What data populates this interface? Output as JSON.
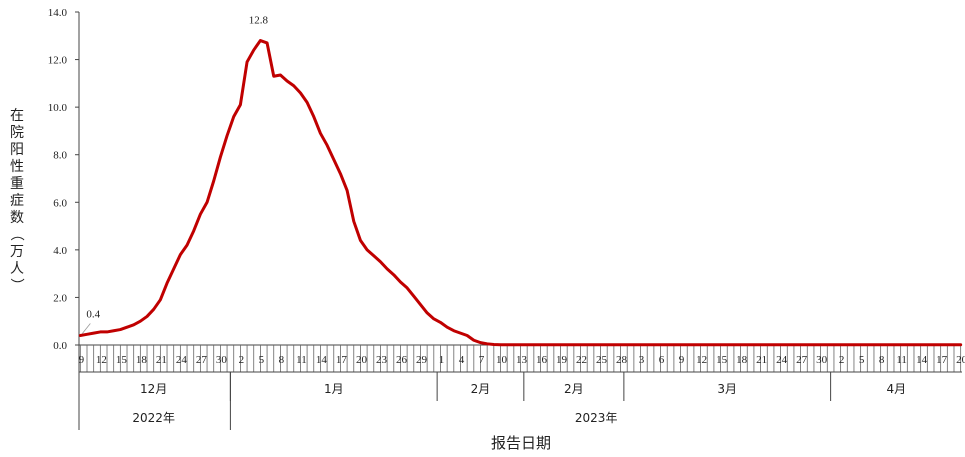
{
  "chart_data": {
    "type": "line",
    "title": "",
    "ylabel": "在院阳性重症数（万人）",
    "xlabel": "报告日期",
    "ylim": [
      0,
      14
    ],
    "yticks": [
      "0.0",
      "2.0",
      "4.0",
      "6.0",
      "8.0",
      "10.0",
      "12.0",
      "14.0"
    ],
    "line_color": "#c00000",
    "grid": false,
    "annotations": [
      {
        "text": "0.4",
        "x": "2022-12-09",
        "y": 0.4
      },
      {
        "text": "12.8",
        "x": "2023-01-05",
        "y": 12.8
      }
    ],
    "day_labels": [
      "9",
      "12",
      "15",
      "18",
      "21",
      "24",
      "27",
      "30",
      "2",
      "5",
      "8",
      "11",
      "14",
      "17",
      "20",
      "23",
      "26",
      "29",
      "1",
      "4",
      "7",
      "10",
      "13",
      "16",
      "19",
      "22",
      "25",
      "28",
      "3",
      "6",
      "9",
      "12",
      "15",
      "18",
      "21",
      "24",
      "27",
      "30",
      "2",
      "5",
      "8",
      "11",
      "14",
      "17",
      "20"
    ],
    "month_groups": [
      {
        "label": "12月",
        "start": "2022-12-09",
        "end": "2022-12-31"
      },
      {
        "label": "1月",
        "start": "2023-01-01",
        "end": "2023-01-31"
      },
      {
        "label": "2月",
        "start": "2023-02-01",
        "end": "2023-02-13"
      },
      {
        "label": "2月",
        "start": "2023-02-14",
        "end": "2023-02-28"
      },
      {
        "label": "3月",
        "start": "2023-03-01",
        "end": "2023-03-31"
      },
      {
        "label": "4月",
        "start": "2023-04-01",
        "end": "2023-04-20"
      }
    ],
    "year_groups": [
      {
        "label": "2022年",
        "start": "2022-12-09",
        "end": "2022-12-31"
      },
      {
        "label": "2023年",
        "start": "2023-01-01",
        "end": "2023-04-20"
      }
    ],
    "x": [
      "2022-12-09",
      "2022-12-10",
      "2022-12-11",
      "2022-12-12",
      "2022-12-13",
      "2022-12-14",
      "2022-12-15",
      "2022-12-16",
      "2022-12-17",
      "2022-12-18",
      "2022-12-19",
      "2022-12-20",
      "2022-12-21",
      "2022-12-22",
      "2022-12-23",
      "2022-12-24",
      "2022-12-25",
      "2022-12-26",
      "2022-12-27",
      "2022-12-28",
      "2022-12-29",
      "2022-12-30",
      "2022-12-31",
      "2023-01-01",
      "2023-01-02",
      "2023-01-03",
      "2023-01-04",
      "2023-01-05",
      "2023-01-06",
      "2023-01-07",
      "2023-01-08",
      "2023-01-09",
      "2023-01-10",
      "2023-01-11",
      "2023-01-12",
      "2023-01-13",
      "2023-01-14",
      "2023-01-15",
      "2023-01-16",
      "2023-01-17",
      "2023-01-18",
      "2023-01-19",
      "2023-01-20",
      "2023-01-21",
      "2023-01-22",
      "2023-01-23",
      "2023-01-24",
      "2023-01-25",
      "2023-01-26",
      "2023-01-27",
      "2023-01-28",
      "2023-01-29",
      "2023-01-30",
      "2023-01-31",
      "2023-02-01",
      "2023-02-02",
      "2023-02-03",
      "2023-02-04",
      "2023-02-05",
      "2023-02-06",
      "2023-02-07",
      "2023-02-08",
      "2023-02-09",
      "2023-02-10",
      "2023-02-11",
      "2023-02-12",
      "2023-02-13",
      "2023-02-14",
      "2023-02-15",
      "2023-02-16",
      "2023-02-17",
      "2023-02-18",
      "2023-02-19",
      "2023-02-20",
      "2023-02-21",
      "2023-02-22",
      "2023-02-23",
      "2023-02-24",
      "2023-02-25",
      "2023-02-26",
      "2023-02-27",
      "2023-02-28",
      "2023-03-01",
      "2023-03-02",
      "2023-03-03",
      "2023-03-04",
      "2023-03-05",
      "2023-03-06",
      "2023-03-07",
      "2023-03-08",
      "2023-03-09",
      "2023-03-10",
      "2023-03-11",
      "2023-03-12",
      "2023-03-13",
      "2023-03-14",
      "2023-03-15",
      "2023-03-16",
      "2023-03-17",
      "2023-03-18",
      "2023-03-19",
      "2023-03-20",
      "2023-03-21",
      "2023-03-22",
      "2023-03-23",
      "2023-03-24",
      "2023-03-25",
      "2023-03-26",
      "2023-03-27",
      "2023-03-28",
      "2023-03-29",
      "2023-03-30",
      "2023-03-31",
      "2023-04-01",
      "2023-04-02",
      "2023-04-03",
      "2023-04-04",
      "2023-04-05",
      "2023-04-06",
      "2023-04-07",
      "2023-04-08",
      "2023-04-09",
      "2023-04-10",
      "2023-04-11",
      "2023-04-12",
      "2023-04-13",
      "2023-04-14",
      "2023-04-15",
      "2023-04-16",
      "2023-04-17",
      "2023-04-18",
      "2023-04-19",
      "2023-04-20"
    ],
    "series": [
      {
        "values": [
          0.4,
          0.45,
          0.5,
          0.55,
          0.55,
          0.6,
          0.65,
          0.75,
          0.85,
          1.0,
          1.2,
          1.5,
          1.9,
          2.6,
          3.2,
          3.8,
          4.2,
          4.8,
          5.5,
          6.0,
          6.9,
          7.9,
          8.8,
          9.6,
          10.1,
          11.9,
          12.4,
          12.8,
          12.7,
          11.3,
          11.35,
          11.1,
          10.9,
          10.6,
          10.2,
          9.6,
          8.9,
          8.4,
          7.8,
          7.2,
          6.5,
          5.2,
          4.4,
          4.0,
          3.75,
          3.5,
          3.2,
          2.95,
          2.65,
          2.4,
          2.05,
          1.7,
          1.35,
          1.1,
          0.95,
          0.75,
          0.6,
          0.5,
          0.4,
          0.2,
          0.1,
          0.05,
          0.02,
          0.01,
          0.01,
          0.01,
          0.01,
          0.01,
          0.01,
          0.01,
          0.01,
          0.01,
          0.01,
          0.01,
          0.01,
          0.01,
          0.01,
          0.01,
          0.01,
          0.01,
          0.01,
          0.01,
          0.01,
          0.01,
          0.01,
          0.01,
          0.01,
          0.01,
          0.01,
          0.01,
          0.01,
          0.01,
          0.01,
          0.01,
          0.01,
          0.01,
          0.01,
          0.01,
          0.01,
          0.01,
          0.01,
          0.01,
          0.01,
          0.01,
          0.01,
          0.01,
          0.01,
          0.01,
          0.01,
          0.01,
          0.01,
          0.01,
          0.01,
          0.01,
          0.01,
          0.01,
          0.01,
          0.01,
          0.01,
          0.01,
          0.01,
          0.01,
          0.01,
          0.01,
          0.01,
          0.01,
          0.01,
          0.01,
          0.01,
          0.01,
          0.01,
          0.01,
          0.01
        ]
      }
    ]
  }
}
